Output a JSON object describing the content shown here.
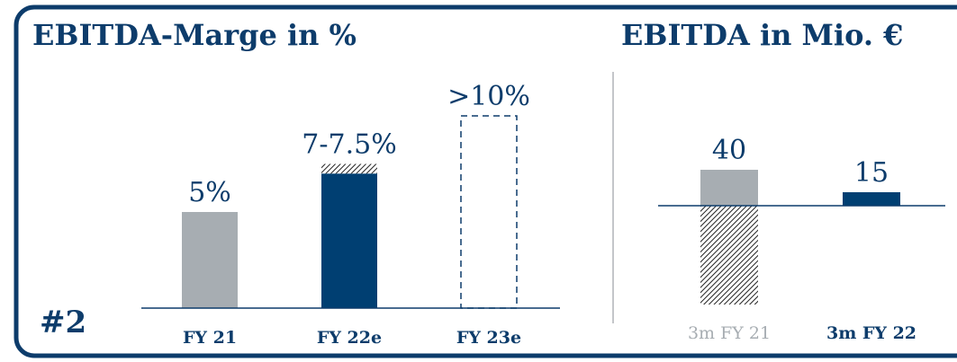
{
  "chart_data": [
    {
      "type": "bar",
      "title": "EBITDA-Marge in %",
      "categories": [
        "FY 21",
        "FY 22e",
        "FY 23e"
      ],
      "values": [
        5,
        7,
        10
      ],
      "upper": [
        null,
        7.5,
        null
      ],
      "value_labels": [
        "5%",
        "7-7.5%",
        ">10%"
      ],
      "colors": [
        "#a7adb2",
        "#003f72",
        "none"
      ],
      "outline": [
        false,
        false,
        true
      ],
      "category_colors": [
        "#0d3c6b",
        "#0d3c6b",
        "#0d3c6b"
      ],
      "category_bold": [
        true,
        true,
        true
      ]
    },
    {
      "type": "bar",
      "title": "EBITDA in Mio. €",
      "categories": [
        "3m FY 21",
        "3m FY 22"
      ],
      "values": [
        40,
        15
      ],
      "negative": [
        -110,
        null
      ],
      "value_labels": [
        "40",
        "15"
      ],
      "colors": [
        "#a7adb2",
        "#003f72"
      ],
      "outline": [
        false,
        false
      ],
      "category_colors": [
        "#a7adb2",
        "#0d3c6b"
      ],
      "category_bold": [
        false,
        true
      ]
    }
  ],
  "badge": "#2"
}
